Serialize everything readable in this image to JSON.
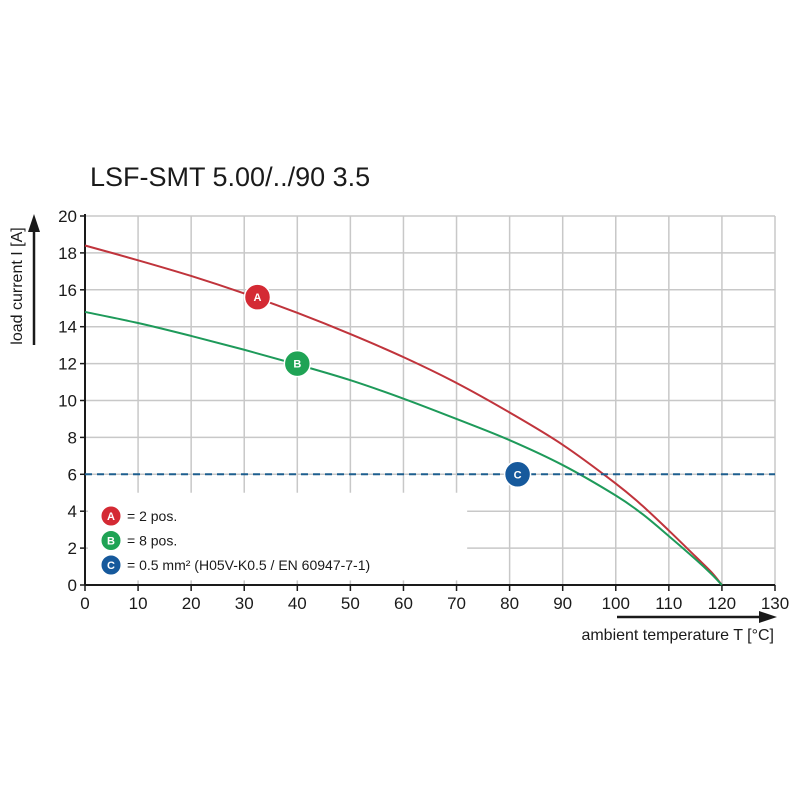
{
  "chart_data": {
    "type": "line",
    "title": "LSF-SMT 5.00/../90 3.5",
    "xlabel": "ambient temperature T [°C]",
    "ylabel": "load current I [A]",
    "xlim": [
      0,
      130
    ],
    "ylim": [
      0,
      20
    ],
    "x_ticks": [
      0,
      10,
      20,
      30,
      40,
      50,
      60,
      70,
      80,
      90,
      100,
      110,
      120,
      130
    ],
    "y_ticks": [
      0,
      2,
      4,
      6,
      8,
      10,
      12,
      14,
      16,
      18,
      20
    ],
    "grid": true,
    "legend_position": "bottom-left",
    "series": [
      {
        "label": "A",
        "color": "#c0343c",
        "marker_color": "#d42a34",
        "marker_at": [
          32.5,
          15.6
        ],
        "points": [
          [
            0,
            18.4
          ],
          [
            10,
            17.6
          ],
          [
            20,
            16.75
          ],
          [
            30,
            15.8
          ],
          [
            40,
            14.75
          ],
          [
            50,
            13.6
          ],
          [
            60,
            12.35
          ],
          [
            70,
            10.95
          ],
          [
            80,
            9.35
          ],
          [
            90,
            7.6
          ],
          [
            100,
            5.5
          ],
          [
            105,
            4.3
          ],
          [
            110,
            2.95
          ],
          [
            115,
            1.55
          ],
          [
            118,
            0.7
          ],
          [
            120,
            0
          ]
        ]
      },
      {
        "label": "B",
        "color": "#1e9a5a",
        "marker_color": "#1fa355",
        "marker_at": [
          40,
          12.0
        ],
        "points": [
          [
            0,
            14.8
          ],
          [
            10,
            14.2
          ],
          [
            20,
            13.5
          ],
          [
            30,
            12.75
          ],
          [
            40,
            11.95
          ],
          [
            50,
            11.1
          ],
          [
            60,
            10.1
          ],
          [
            70,
            9.0
          ],
          [
            80,
            7.85
          ],
          [
            90,
            6.5
          ],
          [
            100,
            4.85
          ],
          [
            105,
            3.85
          ],
          [
            110,
            2.65
          ],
          [
            115,
            1.4
          ],
          [
            118,
            0.6
          ],
          [
            120,
            0
          ]
        ]
      },
      {
        "label": "C",
        "color": "#1d5e8e",
        "marker_color": "#16599c",
        "style": "dashed",
        "marker_at": [
          81.5,
          6.0
        ],
        "points": [
          [
            0,
            6
          ],
          [
            130,
            6
          ]
        ]
      }
    ],
    "legend": [
      {
        "label": "A",
        "text": "= 2 pos.",
        "color": "#d42a34"
      },
      {
        "label": "B",
        "text": "= 8 pos.",
        "color": "#1fa355"
      },
      {
        "label": "C",
        "text": "= 0.5 mm² (H05V-K0.5 / EN 60947-7-1)",
        "color": "#16599c"
      }
    ]
  }
}
